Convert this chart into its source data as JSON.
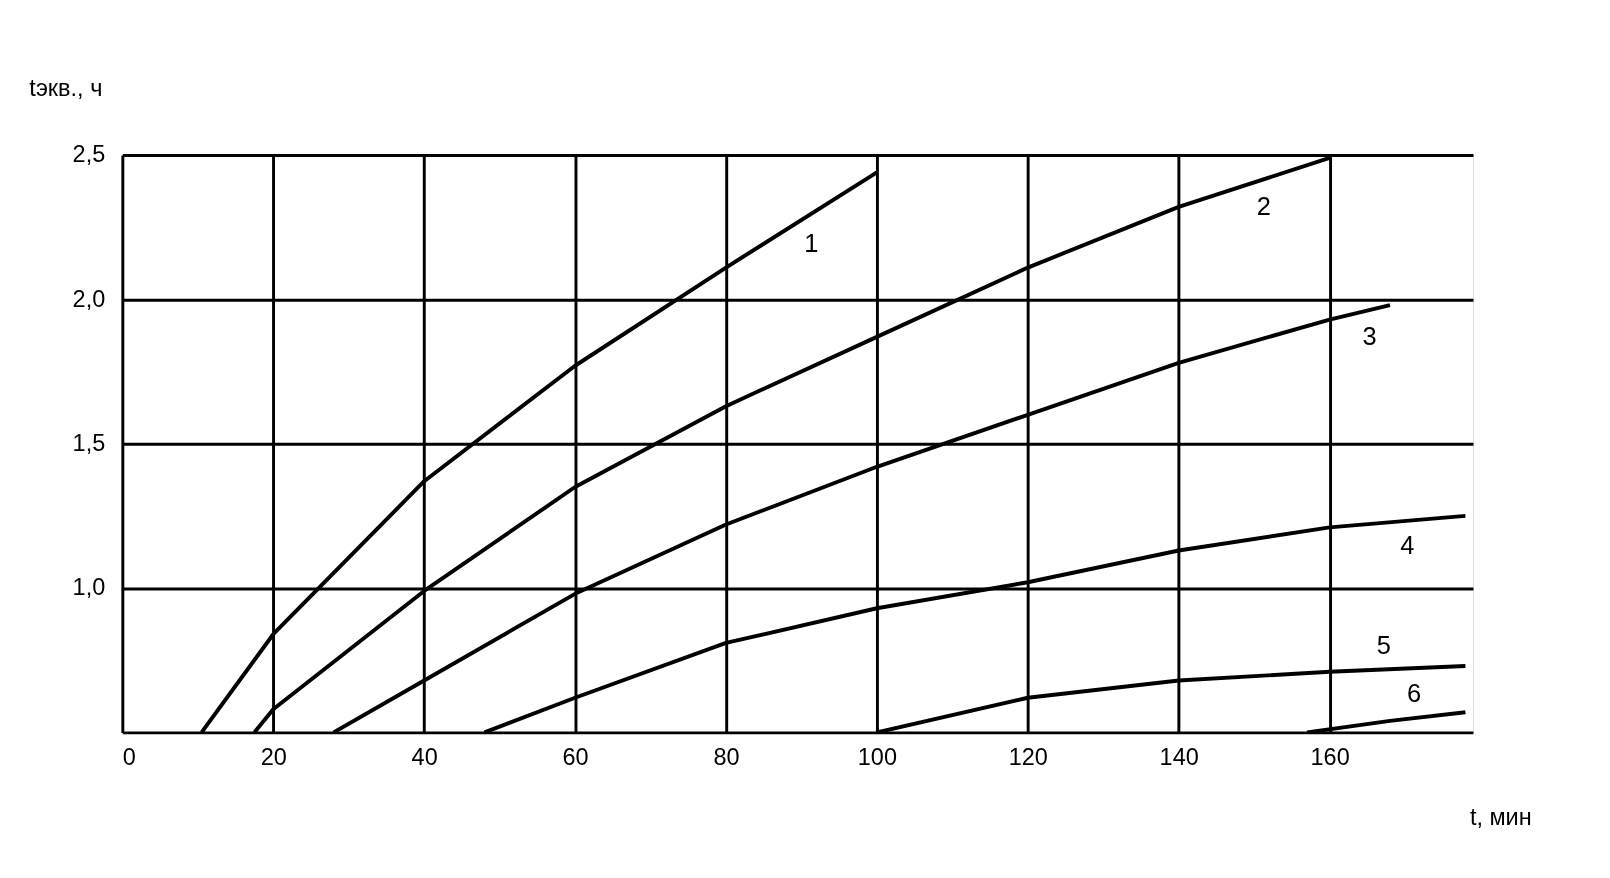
{
  "chart_data": {
    "type": "line",
    "xlabel": "t, мин",
    "ylabel": "tэкв., ч",
    "xlim": [
      0,
      179
    ],
    "ylim": [
      0.5,
      2.5
    ],
    "xticks": [
      0,
      20,
      40,
      60,
      80,
      100,
      120,
      140,
      160
    ],
    "yticks": [
      {
        "value": 0.5,
        "label": null
      },
      {
        "value": 1.0,
        "label": "1,0"
      },
      {
        "value": 1.5,
        "label": "1,5"
      },
      {
        "value": 2.0,
        "label": "2,0"
      },
      {
        "value": 2.5,
        "label": "2,5"
      }
    ],
    "grid": true,
    "marker": "none",
    "line_style": "solid",
    "series": [
      {
        "name": "1",
        "color": "#000000",
        "x": [
          10.5,
          20,
          40,
          60,
          80,
          100
        ],
        "values": [
          0.5,
          0.84,
          1.37,
          1.77,
          2.11,
          2.44
        ]
      },
      {
        "name": "2",
        "color": "#000000",
        "x": [
          17.5,
          20,
          40,
          60,
          80,
          100,
          120,
          140,
          160
        ],
        "values": [
          0.5,
          0.58,
          0.99,
          1.35,
          1.63,
          1.87,
          2.11,
          2.32,
          2.49
        ]
      },
      {
        "name": "3",
        "color": "#000000",
        "x": [
          28,
          40,
          60,
          80,
          100,
          120,
          140,
          160,
          168
        ],
        "values": [
          0.5,
          0.68,
          0.98,
          1.22,
          1.42,
          1.6,
          1.78,
          1.93,
          1.98
        ]
      },
      {
        "name": "4",
        "color": "#000000",
        "x": [
          48,
          60,
          80,
          100,
          120,
          140,
          160,
          178
        ],
        "values": [
          0.5,
          0.62,
          0.81,
          0.93,
          1.02,
          1.13,
          1.21,
          1.25
        ]
      },
      {
        "name": "5",
        "color": "#000000",
        "x": [
          100,
          120,
          140,
          160,
          178
        ],
        "values": [
          0.5,
          0.62,
          0.68,
          0.71,
          0.73
        ]
      },
      {
        "name": "6",
        "color": "#000000",
        "x": [
          157,
          168,
          178
        ],
        "values": [
          0.5,
          0.54,
          0.57
        ]
      }
    ]
  }
}
